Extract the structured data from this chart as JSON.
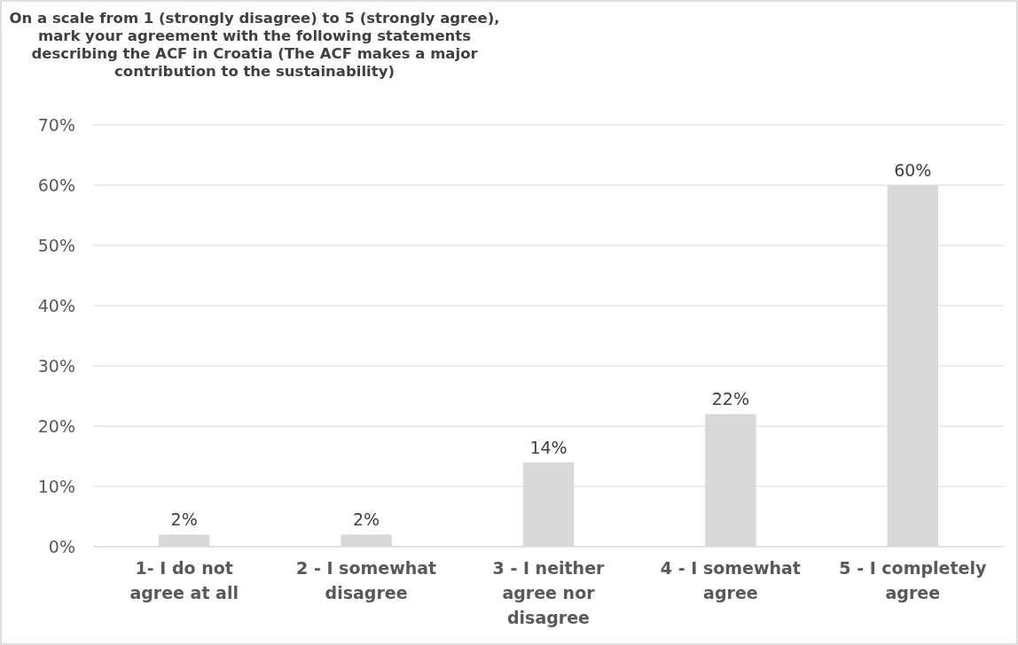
{
  "chart_data": {
    "type": "bar",
    "title": "On a scale from 1 (strongly disagree) to 5 (strongly agree), mark your agreement with the following statements describing the ACF in Croatia (The ACF makes a major contribution to the sustainability)",
    "categories": [
      "1- I do not agree at all",
      "2 - I somewhat disagree",
      "3 - I neither agree nor disagree",
      "4 - I somewhat agree",
      "5 - I completely agree"
    ],
    "values": [
      2,
      2,
      14,
      22,
      60
    ],
    "color": "#d9d9d9",
    "ylim": [
      0,
      70
    ],
    "yticks": [
      {
        "value": 0,
        "label": "0%"
      },
      {
        "value": 10,
        "label": "10%"
      },
      {
        "value": 20,
        "label": "20%"
      },
      {
        "value": 30,
        "label": "30%"
      },
      {
        "value": 40,
        "label": "40%"
      },
      {
        "value": 50,
        "label": "50%"
      },
      {
        "value": 60,
        "label": "60%"
      },
      {
        "value": 70,
        "label": "70%"
      }
    ],
    "value_labels": [
      "2%",
      "2%",
      "14%",
      "22%",
      "60%"
    ],
    "grid": "y"
  }
}
